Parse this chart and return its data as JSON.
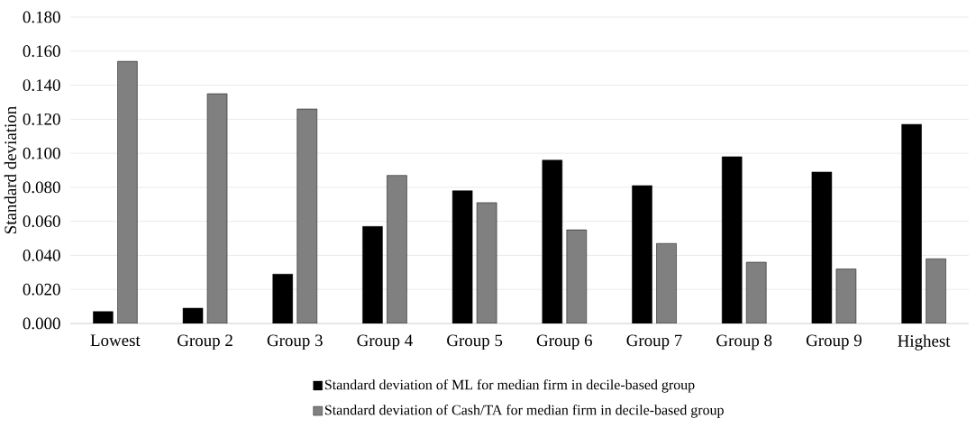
{
  "chart_data": {
    "type": "bar",
    "ylabel": "Standard deviation",
    "categories": [
      "Lowest",
      "Group 2",
      "Group 3",
      "Group 4",
      "Group 5",
      "Group 6",
      "Group 7",
      "Group 8",
      "Group 9",
      "Highest"
    ],
    "series": [
      {
        "name": "Standard deviation of ML for median firm in decile-based group",
        "color": "#000000",
        "values": [
          0.007,
          0.009,
          0.029,
          0.057,
          0.078,
          0.096,
          0.081,
          0.098,
          0.089,
          0.117
        ]
      },
      {
        "name": "Standard deviation of Cash/TA for median firm in decile-based group",
        "color": "#808080",
        "values": [
          0.154,
          0.135,
          0.126,
          0.087,
          0.071,
          0.055,
          0.047,
          0.036,
          0.032,
          0.038
        ]
      }
    ],
    "ylim": [
      0,
      0.18
    ],
    "yticks": [
      {
        "value": 0,
        "label": "0.000"
      },
      {
        "value": 0.02,
        "label": "0.020"
      },
      {
        "value": 0.04,
        "label": "0.040"
      },
      {
        "value": 0.06,
        "label": "0.060"
      },
      {
        "value": 0.08,
        "label": "0.080"
      },
      {
        "value": 0.1,
        "label": "0.100"
      },
      {
        "value": 0.12,
        "label": "0.120"
      },
      {
        "value": 0.14,
        "label": "0.140"
      },
      {
        "value": 0.16,
        "label": "0.160"
      },
      {
        "value": 0.18,
        "label": "0.180"
      }
    ],
    "grid": "y",
    "legend": "bottom"
  }
}
